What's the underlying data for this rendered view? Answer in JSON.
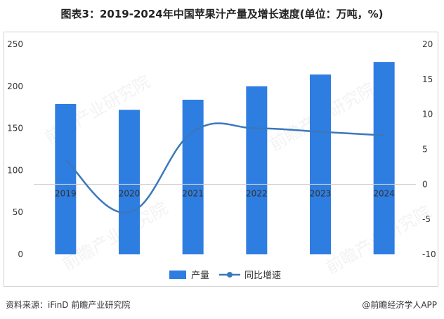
{
  "title": "图表3：2019-2024年中国苹果汁产量及增长速度(单位：万吨，%)",
  "source": "资料来源：iFinD 前瞻产业研究院",
  "brand": "@前瞻经济学人APP",
  "watermark": "前瞻产业研究院",
  "colors": {
    "bar": "#2e7de1",
    "line": "#3a78bd",
    "axis": "#999999"
  },
  "chart_data": {
    "type": "bar",
    "categories": [
      "2019",
      "2020",
      "2021",
      "2022",
      "2023",
      "2024"
    ],
    "series": [
      {
        "name": "产量",
        "type": "bar",
        "axis": "left",
        "values": [
          179,
          172,
          184,
          200,
          214,
          229
        ]
      },
      {
        "name": "同比增速",
        "type": "line",
        "axis": "right",
        "smooth": true,
        "values": [
          3.5,
          -4.0,
          7.5,
          8.0,
          7.5,
          7.0
        ]
      }
    ],
    "y_left": {
      "ylim": [
        0,
        250
      ],
      "ticks": [
        0,
        50,
        100,
        150,
        200,
        250
      ]
    },
    "y_right": {
      "ylim": [
        -10,
        20
      ],
      "ticks": [
        -10,
        -5,
        0,
        5,
        10,
        15,
        20
      ]
    },
    "legend": "bottom",
    "grid": false
  }
}
